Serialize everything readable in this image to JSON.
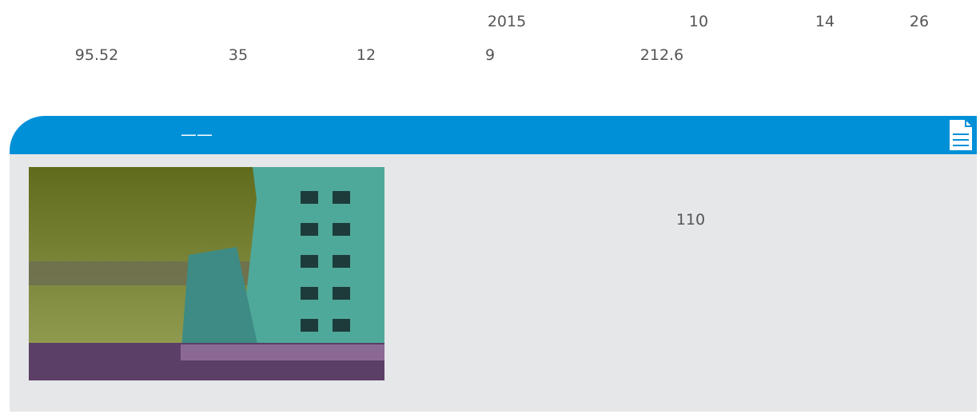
{
  "intro": {
    "line1": [
      2015,
      10,
      14,
      26
    ],
    "line2": [
      95.52,
      35,
      12,
      9,
      212.6
    ]
  },
  "section": {
    "heading": "——",
    "body": 110
  }
}
